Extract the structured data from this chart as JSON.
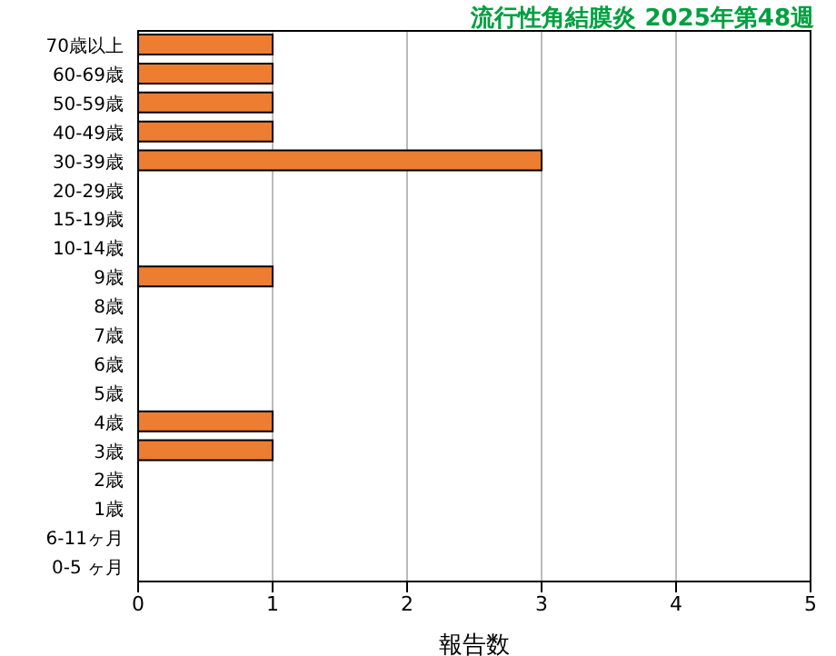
{
  "chart_data": {
    "type": "bar",
    "orientation": "horizontal",
    "title": "流行性角結膜炎 2025年第48週",
    "xlabel": "報告数",
    "categories": [
      "70歳以上",
      "60-69歳",
      "50-59歳",
      "40-49歳",
      "30-39歳",
      "20-29歳",
      "15-19歳",
      "10-14歳",
      "9歳",
      "8歳",
      "7歳",
      "6歳",
      "5歳",
      "4歳",
      "3歳",
      "2歳",
      "1歳",
      "6-11ヶ月",
      "0-5 ヶ月"
    ],
    "values": [
      1,
      1,
      1,
      1,
      3,
      0,
      0,
      0,
      1,
      0,
      0,
      0,
      0,
      1,
      1,
      0,
      0,
      0,
      0
    ],
    "color": "#ed7d31",
    "xlim": [
      0,
      5
    ],
    "xticks": [
      0,
      1,
      2,
      3,
      4,
      5
    ],
    "grid": "x"
  }
}
